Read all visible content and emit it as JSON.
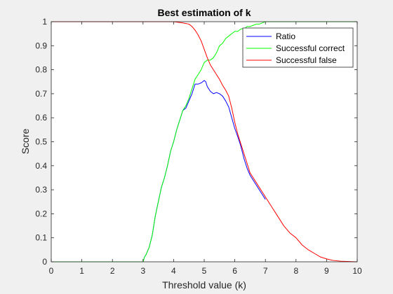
{
  "chart_data": {
    "type": "line",
    "title": "Best estimation of k",
    "xlabel": "Threshold value (k)",
    "ylabel": "Score",
    "xlim": [
      0,
      10
    ],
    "ylim": [
      0,
      1
    ],
    "xticks": [
      0,
      1,
      2,
      3,
      4,
      5,
      6,
      7,
      8,
      9,
      10
    ],
    "yticks": [
      0,
      0.1,
      0.2,
      0.3,
      0.4,
      0.5,
      0.6,
      0.7,
      0.8,
      0.9,
      1
    ],
    "grid": false,
    "legend_position": "top-right",
    "series": [
      {
        "name": "Ratio",
        "color": "#0000ff",
        "x": [
          0,
          3.0,
          3.05,
          3.1,
          3.2,
          3.3,
          3.4,
          3.5,
          3.6,
          3.7,
          3.8,
          3.9,
          4.0,
          4.1,
          4.2,
          4.3,
          4.4,
          4.5,
          4.6,
          4.7,
          4.8,
          4.9,
          5.0,
          5.05,
          5.1,
          5.2,
          5.3,
          5.4,
          5.5,
          5.6,
          5.7,
          5.8,
          5.9,
          6.0,
          6.1,
          6.2,
          6.3,
          6.4,
          6.5,
          6.6,
          6.7,
          6.8,
          6.9,
          7.0
        ],
        "y": [
          0,
          0,
          0.02,
          0.03,
          0.06,
          0.11,
          0.19,
          0.25,
          0.31,
          0.35,
          0.4,
          0.46,
          0.5,
          0.55,
          0.59,
          0.63,
          0.64,
          0.67,
          0.7,
          0.74,
          0.74,
          0.745,
          0.755,
          0.75,
          0.73,
          0.71,
          0.7,
          0.705,
          0.7,
          0.69,
          0.67,
          0.645,
          0.6,
          0.555,
          0.52,
          0.48,
          0.43,
          0.39,
          0.36,
          0.34,
          0.32,
          0.3,
          0.28,
          0.26
        ]
      },
      {
        "name": "Successful correct",
        "color": "#00ff00",
        "x": [
          0,
          3.0,
          3.05,
          3.1,
          3.2,
          3.3,
          3.4,
          3.5,
          3.6,
          3.7,
          3.8,
          3.9,
          4.0,
          4.1,
          4.2,
          4.3,
          4.4,
          4.5,
          4.6,
          4.7,
          4.8,
          4.9,
          5.0,
          5.1,
          5.2,
          5.3,
          5.4,
          5.5,
          5.6,
          5.7,
          5.8,
          5.9,
          6.0,
          6.1,
          6.2,
          6.3,
          6.4,
          6.5,
          6.6,
          6.7,
          6.8,
          6.9,
          7.0,
          7.1,
          7.2,
          8.0,
          9.0,
          10.0
        ],
        "y": [
          0,
          0,
          0.02,
          0.03,
          0.06,
          0.11,
          0.19,
          0.25,
          0.31,
          0.35,
          0.4,
          0.46,
          0.5,
          0.55,
          0.59,
          0.63,
          0.65,
          0.68,
          0.72,
          0.76,
          0.78,
          0.8,
          0.83,
          0.84,
          0.84,
          0.85,
          0.87,
          0.9,
          0.91,
          0.93,
          0.94,
          0.95,
          0.96,
          0.96,
          0.97,
          0.97,
          0.98,
          0.98,
          0.985,
          0.99,
          0.99,
          0.995,
          1.0,
          1.0,
          1.0,
          1.0,
          1.0,
          1.0
        ]
      },
      {
        "name": "Successful false",
        "color": "#ff0000",
        "x": [
          0,
          3.5,
          4.0,
          4.3,
          4.5,
          4.6,
          4.7,
          4.8,
          4.9,
          5.0,
          5.1,
          5.2,
          5.3,
          5.4,
          5.5,
          5.6,
          5.7,
          5.8,
          5.9,
          6.0,
          6.1,
          6.2,
          6.3,
          6.4,
          6.5,
          6.6,
          6.7,
          6.8,
          6.9,
          7.0,
          7.2,
          7.4,
          7.6,
          7.8,
          8.0,
          8.2,
          8.4,
          8.6,
          8.8,
          9.0,
          9.2,
          9.5,
          10.0
        ],
        "y": [
          1,
          1,
          1,
          0.995,
          0.99,
          0.98,
          0.965,
          0.945,
          0.92,
          0.885,
          0.85,
          0.82,
          0.8,
          0.78,
          0.76,
          0.735,
          0.715,
          0.69,
          0.64,
          0.58,
          0.53,
          0.49,
          0.45,
          0.41,
          0.37,
          0.35,
          0.33,
          0.31,
          0.29,
          0.27,
          0.23,
          0.19,
          0.15,
          0.12,
          0.1,
          0.07,
          0.05,
          0.035,
          0.02,
          0.012,
          0.006,
          0.002,
          0
        ]
      }
    ]
  }
}
